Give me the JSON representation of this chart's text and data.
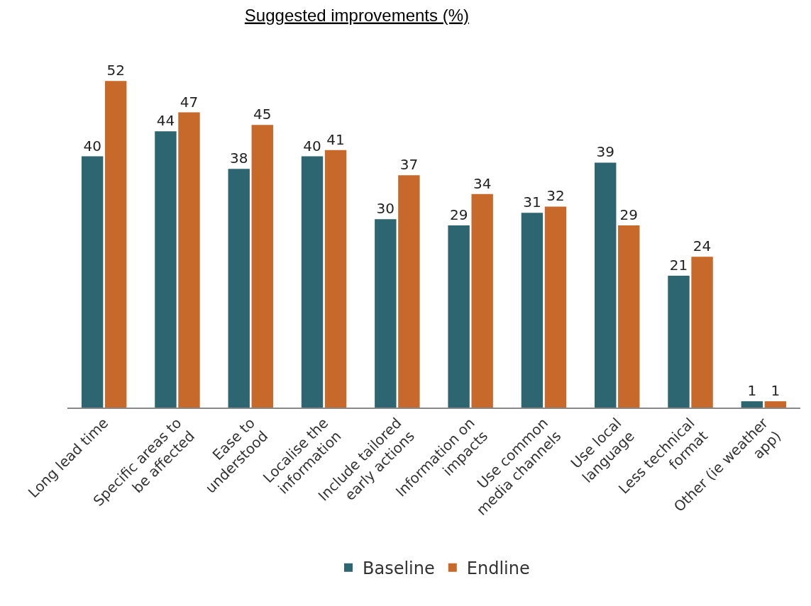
{
  "chart_data": {
    "type": "bar",
    "title": "Suggested improvements (%)",
    "categories": [
      "Long lead time",
      "Specific areas to\nbe affected",
      "Ease to\nunderstood",
      "Localise the\ninformation",
      "Include tailored\nearly actions",
      "Information on\nimpacts",
      "Use common\nmedia channels",
      "Use local\nlanguage",
      "Less technical\nformat",
      "Other (ie weather\napp)"
    ],
    "series": [
      {
        "name": "Baseline",
        "color": "#2d6670",
        "values": [
          40,
          44,
          38,
          40,
          30,
          29,
          31,
          39,
          21,
          1
        ]
      },
      {
        "name": "Endline",
        "color": "#c8692c",
        "values": [
          52,
          47,
          45,
          41,
          37,
          34,
          32,
          29,
          24,
          1
        ]
      }
    ],
    "data_labels": true,
    "legend": "bottom"
  }
}
